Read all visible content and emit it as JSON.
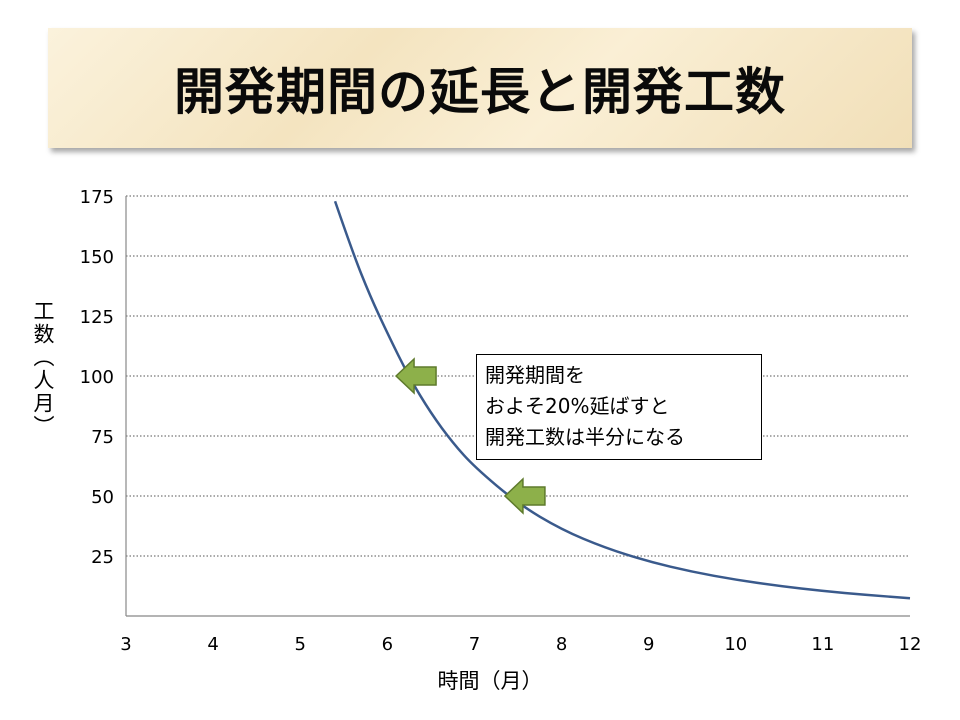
{
  "title": "開発期間の延長と開発工数",
  "callout": {
    "lines": [
      "開発期間を",
      "およそ20%延ばすと",
      "開発工数は半分になる"
    ]
  },
  "colors": {
    "curve": "#3a5a8c",
    "arrow_fill": "#8db04a",
    "arrow_stroke": "#5e7a2c",
    "grid": "#555555"
  },
  "icons": [
    "arrow-left-icon",
    "arrow-left-icon"
  ],
  "chart_data": {
    "type": "line",
    "title": "",
    "xlabel": "時間（月）",
    "ylabel": "工数（人月）",
    "xlim": [
      3,
      12
    ],
    "ylim": [
      0,
      175
    ],
    "x_ticks": [
      3,
      4,
      5,
      6,
      7,
      8,
      9,
      10,
      11,
      12
    ],
    "y_ticks": [
      25,
      50,
      75,
      100,
      125,
      150,
      175
    ],
    "grid": "horizontal-dotted",
    "series": [
      {
        "x": [
          5.4,
          5.6,
          5.8,
          6.0,
          6.25,
          6.5,
          6.75,
          7.0,
          7.5,
          8.0,
          8.5,
          9.0,
          9.5,
          10.0,
          10.5,
          11.0,
          11.5,
          12.0
        ],
        "values": [
          172.8,
          151.7,
          133.5,
          117.9,
          99.5,
          84.5,
          72.2,
          62.1,
          46.8,
          36.0,
          28.4,
          22.7,
          18.4,
          15.1,
          12.5,
          10.4,
          8.8,
          7.4
        ]
      }
    ],
    "annotations": [
      {
        "type": "arrow",
        "x": 6.1,
        "y": 100
      },
      {
        "type": "arrow",
        "x": 7.35,
        "y": 50
      }
    ]
  }
}
